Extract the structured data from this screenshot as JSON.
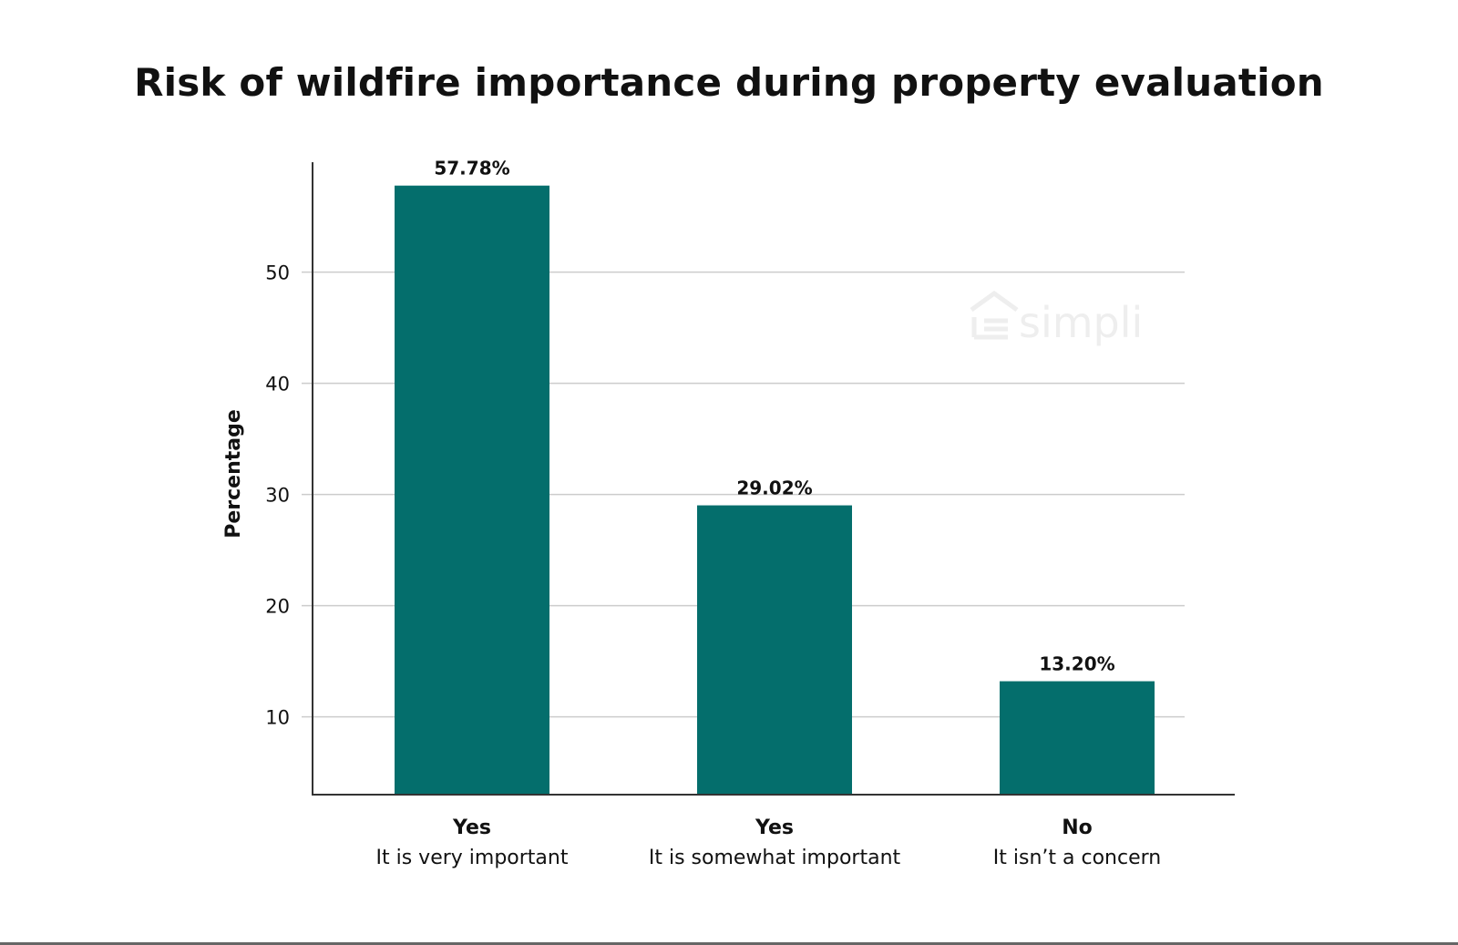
{
  "chart_data": {
    "type": "bar",
    "title": "Risk of wildfire importance during property evaluation",
    "xlabel": "",
    "ylabel": "Percentage",
    "categories": [
      {
        "main": "Yes",
        "sub": "It is very important"
      },
      {
        "main": "Yes",
        "sub": "It is somewhat important"
      },
      {
        "main": "No",
        "sub": "It isn’t a concern"
      }
    ],
    "values": [
      57.78,
      29.02,
      13.2
    ],
    "value_labels": [
      "57.78%",
      "29.02%",
      "13.20%"
    ],
    "ylim": [
      3,
      57
    ],
    "yticks": [
      10,
      20,
      30,
      40,
      50
    ],
    "grid": true,
    "legend": "none",
    "bar_color": "#046e6c",
    "grid_color": "#cccccc"
  },
  "watermark": {
    "text": "simpli",
    "icon": "house-icon"
  }
}
